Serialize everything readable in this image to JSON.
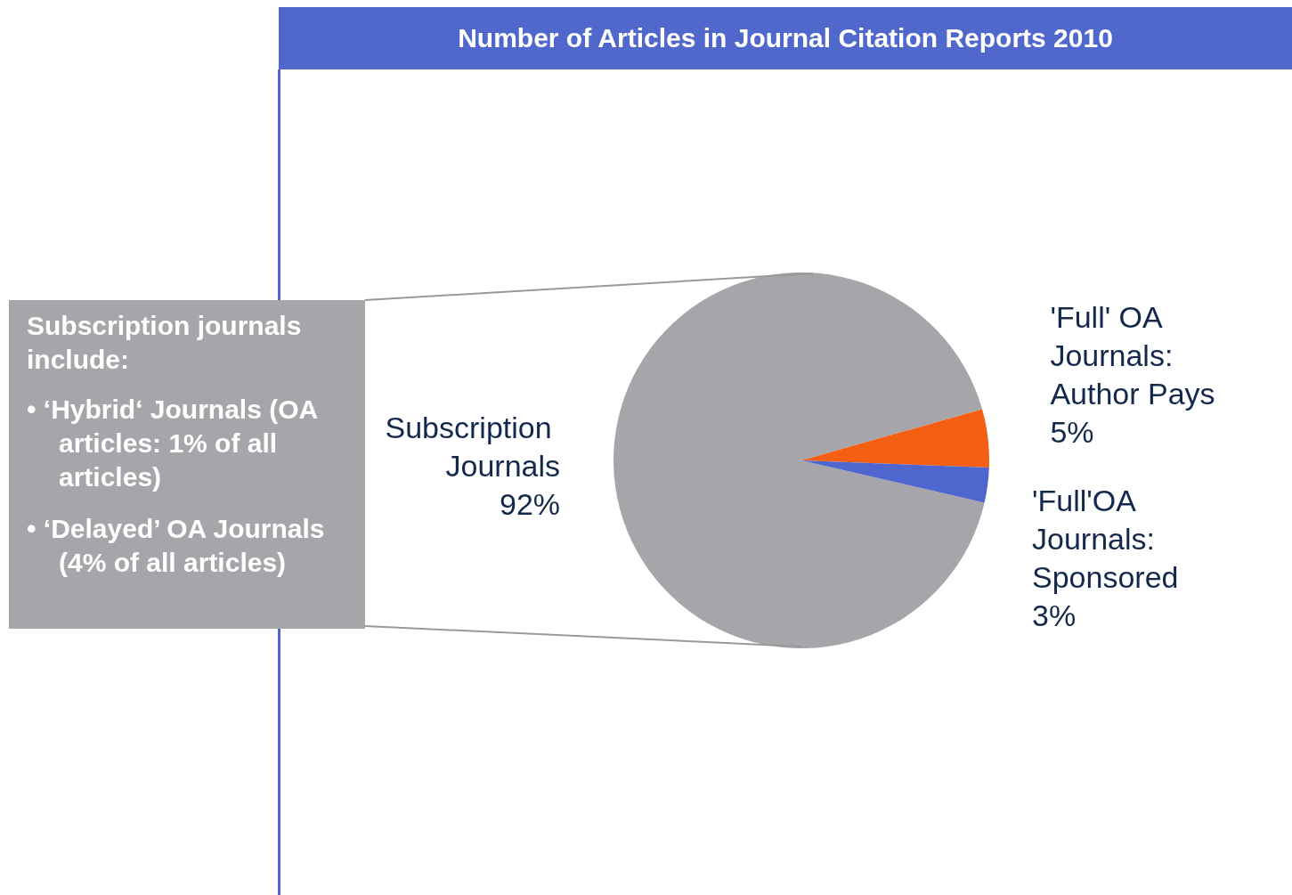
{
  "chart_data": {
    "type": "pie",
    "title": "Number of Articles in Journal Citation Reports 2010",
    "categories": [
      "Subscription Journals",
      "'Full' OA Journals: Author Pays",
      "'Full'OA Journals: Sponsored"
    ],
    "values": [
      92,
      5,
      3
    ],
    "colors": [
      "#a6a5aa",
      "#f55f14",
      "#4f66cf"
    ],
    "value_labels": [
      "92%",
      "5%",
      "3%"
    ],
    "legend": false,
    "annotations": [
      "Subscription journals include:",
      "• ‘Hybrid‘ Journals (OA articles: 1% of all articles)",
      "• ‘Delayed’ OA Journals (4% of all articles)"
    ]
  }
}
